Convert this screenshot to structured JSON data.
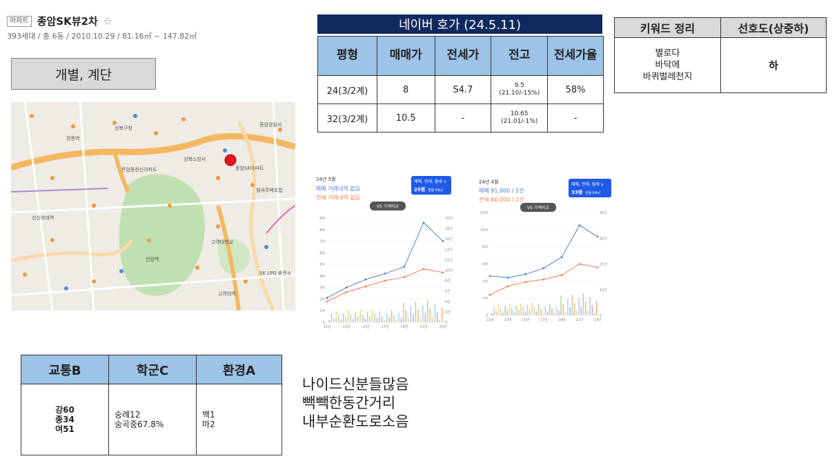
{
  "header": {
    "badge": "아파트",
    "name": "종암SK뷰2차",
    "star": "☆",
    "info": "393세대 / 총 6동 / 2010.10.29 / 81.16㎡ ~ 147.82㎡"
  },
  "segment_label": "개별, 계단",
  "map": {
    "marker_color": "#e8131b",
    "labels": [
      "성북구청",
      "성신여대역",
      "고려대학교",
      "고려대역",
      "종암SK아파트",
      "성북소방서",
      "SK LPG 충전소",
      "안암역",
      "정릉역",
      "돈암동한신아파트",
      "종암경찰서",
      "월곡주택조합"
    ]
  },
  "hoga": {
    "title": "네이버 호가 (24.5.11)",
    "headers": [
      "평형",
      "매매가",
      "전세가",
      "전고",
      "전세가율"
    ],
    "rows": [
      [
        "24(3/2계)",
        "8",
        "S4.7",
        "9.5",
        "(21.10/-15%)",
        "58%"
      ],
      [
        "32(3/2계)",
        "10.5",
        "-",
        "10.65",
        "(21.01/-1%)",
        "-"
      ]
    ]
  },
  "keywords": {
    "headers": [
      "키워드 정리",
      "선호도(상중하)"
    ],
    "lines": [
      "별로다",
      "",
      "바닥에",
      "바퀴벌레천지"
    ],
    "preference": "하"
  },
  "chart_left": {
    "month": "24년 5월",
    "trade": "매매 거래내역 없음",
    "rent": "전세 거래내역 없음",
    "filter": "매매, 전세, 월세 ∨",
    "size": "25평",
    "size_sub": "전용 59㎡",
    "compare": "VS 가격비교",
    "yticks_left": [
      "9억",
      "8억",
      "7억",
      "6억",
      "5억",
      "4억",
      "3억",
      "2억",
      "1억",
      "0"
    ],
    "yticks_right": [
      "20건",
      "18건",
      "16건",
      "14건",
      "12건",
      "10건",
      "8건",
      "6건",
      "4건",
      "2건",
      "0"
    ],
    "xticks": [
      "11년",
      "13년",
      "15년",
      "17년",
      "19년",
      "21년",
      "23년"
    ]
  },
  "chart_right": {
    "month": "24년 4월",
    "trade": "매매 91,000 / 1건",
    "rent": "전세 60,000 / 2건",
    "filter": "매매, 전세, 월세 ∨",
    "size": "33평",
    "size_sub": "전용 84㎡",
    "compare": "VS 가격비교",
    "yticks_left": [
      "12억",
      "10억",
      "8억",
      "6억",
      "4억",
      "2억",
      "0"
    ],
    "yticks_right": [
      "40건",
      "30건",
      "20건",
      "10건",
      "0"
    ],
    "xticks": [
      "11년",
      "13년",
      "15년",
      "17년",
      "19년",
      "21년",
      "23년"
    ]
  },
  "chart_data": [
    {
      "type": "line",
      "x": [
        "11년",
        "13년",
        "15년",
        "17년",
        "19년",
        "21년",
        "23년"
      ],
      "series": [
        {
          "name": "매매",
          "color": "#4a7fd6",
          "values": [
            2.1,
            3.0,
            3.7,
            4.2,
            4.8,
            8.6,
            7.0
          ]
        },
        {
          "name": "전세",
          "color": "#f07a4a",
          "values": [
            1.8,
            2.6,
            3.1,
            3.6,
            3.9,
            4.6,
            4.3
          ]
        }
      ],
      "ylim": [
        0,
        9
      ]
    },
    {
      "type": "line",
      "x": [
        "11년",
        "13년",
        "15년",
        "17년",
        "19년",
        "21년",
        "23년"
      ],
      "series": [
        {
          "name": "매매",
          "color": "#4a7fd6",
          "values": [
            4.6,
            4.4,
            4.8,
            5.5,
            6.8,
            10.5,
            9.2
          ]
        },
        {
          "name": "전세",
          "color": "#f07a4a",
          "values": [
            2.4,
            3.4,
            3.9,
            4.2,
            4.7,
            6.0,
            5.6
          ]
        }
      ],
      "ylim": [
        0,
        12
      ]
    }
  ],
  "score": {
    "headers": [
      "교통B",
      "학군C",
      "환경A"
    ],
    "transport": [
      "강60",
      "종34",
      "여51"
    ],
    "school": [
      "숭례12",
      "숭곡중67.8%"
    ],
    "environment": [
      "백1",
      "마2"
    ]
  },
  "notes": [
    "나이드신분들많음",
    "빽빽한동간거리",
    "내부순환도로소음"
  ]
}
